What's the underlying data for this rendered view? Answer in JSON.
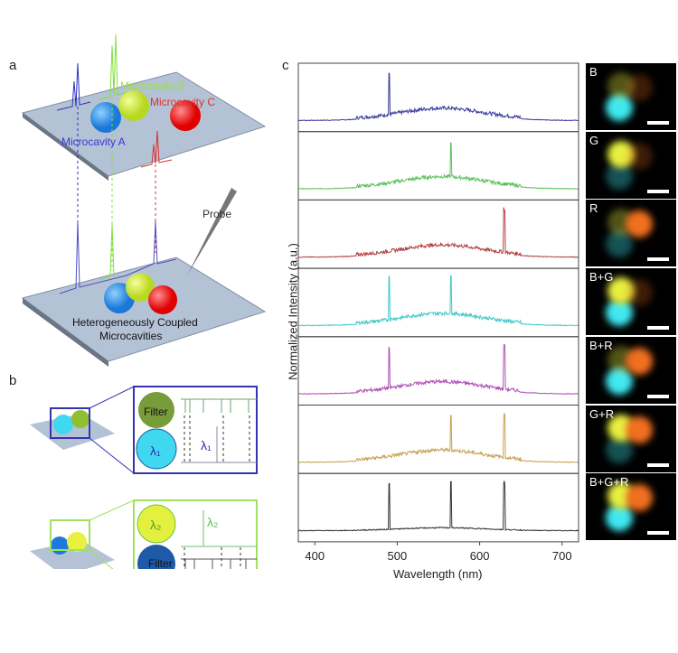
{
  "panels": {
    "a": "a",
    "b": "b",
    "c": "c"
  },
  "panel_a": {
    "cavity_a": "Microcavity A",
    "cavity_b": "Microcavity B",
    "cavity_c": "Microcavity C",
    "probe": "Probe",
    "coupled": "Heterogeneously Coupled",
    "coupled2": "Microcavities"
  },
  "panel_b": {
    "filter": "Filter",
    "lambda1": "λ₁",
    "lambda2": "λ₂"
  },
  "chart_data": {
    "type": "line",
    "xlabel": "Wavelength (nm)",
    "ylabel": "Normalized Intensity (a.u.)",
    "xlim": [
      380,
      720
    ],
    "xticks": [
      400,
      500,
      600,
      700
    ],
    "series": [
      {
        "name": "B",
        "color": "#3c3c9c",
        "peaks": [
          490
        ]
      },
      {
        "name": "G",
        "color": "#5cc05c",
        "peaks": [
          565
        ]
      },
      {
        "name": "R",
        "color": "#b04040",
        "peaks": [
          630
        ]
      },
      {
        "name": "B+G",
        "color": "#40c8c8",
        "peaks": [
          490,
          565
        ]
      },
      {
        "name": "B+R",
        "color": "#b050b8",
        "peaks": [
          490,
          630
        ]
      },
      {
        "name": "G+R",
        "color": "#c8a050",
        "peaks": [
          565,
          630
        ]
      },
      {
        "name": "B+G+R",
        "color": "#333333",
        "peaks": [
          490,
          565,
          630
        ]
      }
    ]
  }
}
